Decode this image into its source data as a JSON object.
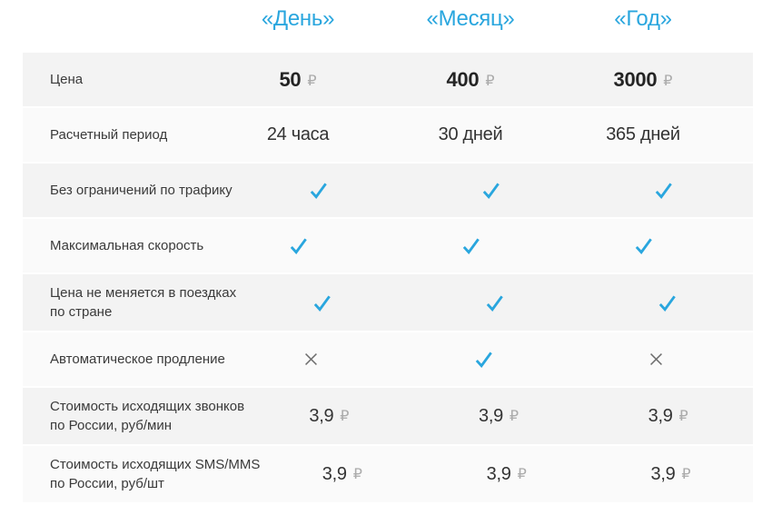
{
  "colors": {
    "accent_blue": "#29a6de",
    "row_dark_bg": "#f3f3f3",
    "row_light_bg": "#fafafa",
    "label_text": "#3a3a3a",
    "value_text": "#333333",
    "ruble_gray": "#ababab",
    "cross_gray": "#6d6d6d"
  },
  "currency": "₽",
  "header": {
    "columns": [
      "«День»",
      "«Месяц»",
      "«Год»"
    ]
  },
  "table": {
    "column_keys": [
      "day",
      "month",
      "year"
    ],
    "rows": [
      {
        "label": "Цена",
        "type": "price-bold",
        "values": [
          "50",
          "400",
          "3000"
        ]
      },
      {
        "label": "Расчетный период",
        "type": "text",
        "values": [
          "24 часа",
          "30 дней",
          "365 дней"
        ]
      },
      {
        "label": "Без ограничений по трафику",
        "type": "icon",
        "values": [
          "check",
          "check",
          "check"
        ]
      },
      {
        "label": "Максимальная скорость",
        "type": "icon",
        "values": [
          "check",
          "check",
          "check"
        ]
      },
      {
        "label": "Цена не меняется в поездках\nпо стране",
        "type": "icon",
        "values": [
          "check",
          "check",
          "check"
        ]
      },
      {
        "label": "Автоматическое продление",
        "type": "icon",
        "values": [
          "cross",
          "check",
          "cross"
        ]
      },
      {
        "label": "Стоимость исходящих звонков\nпо России, руб/мин",
        "type": "price",
        "values": [
          "3,9",
          "3,9",
          "3,9"
        ]
      },
      {
        "label": "Стоимость исходящих SMS/MMS\nпо России, руб/шт",
        "type": "price",
        "values": [
          "3,9",
          "3,9",
          "3,9"
        ]
      }
    ]
  }
}
